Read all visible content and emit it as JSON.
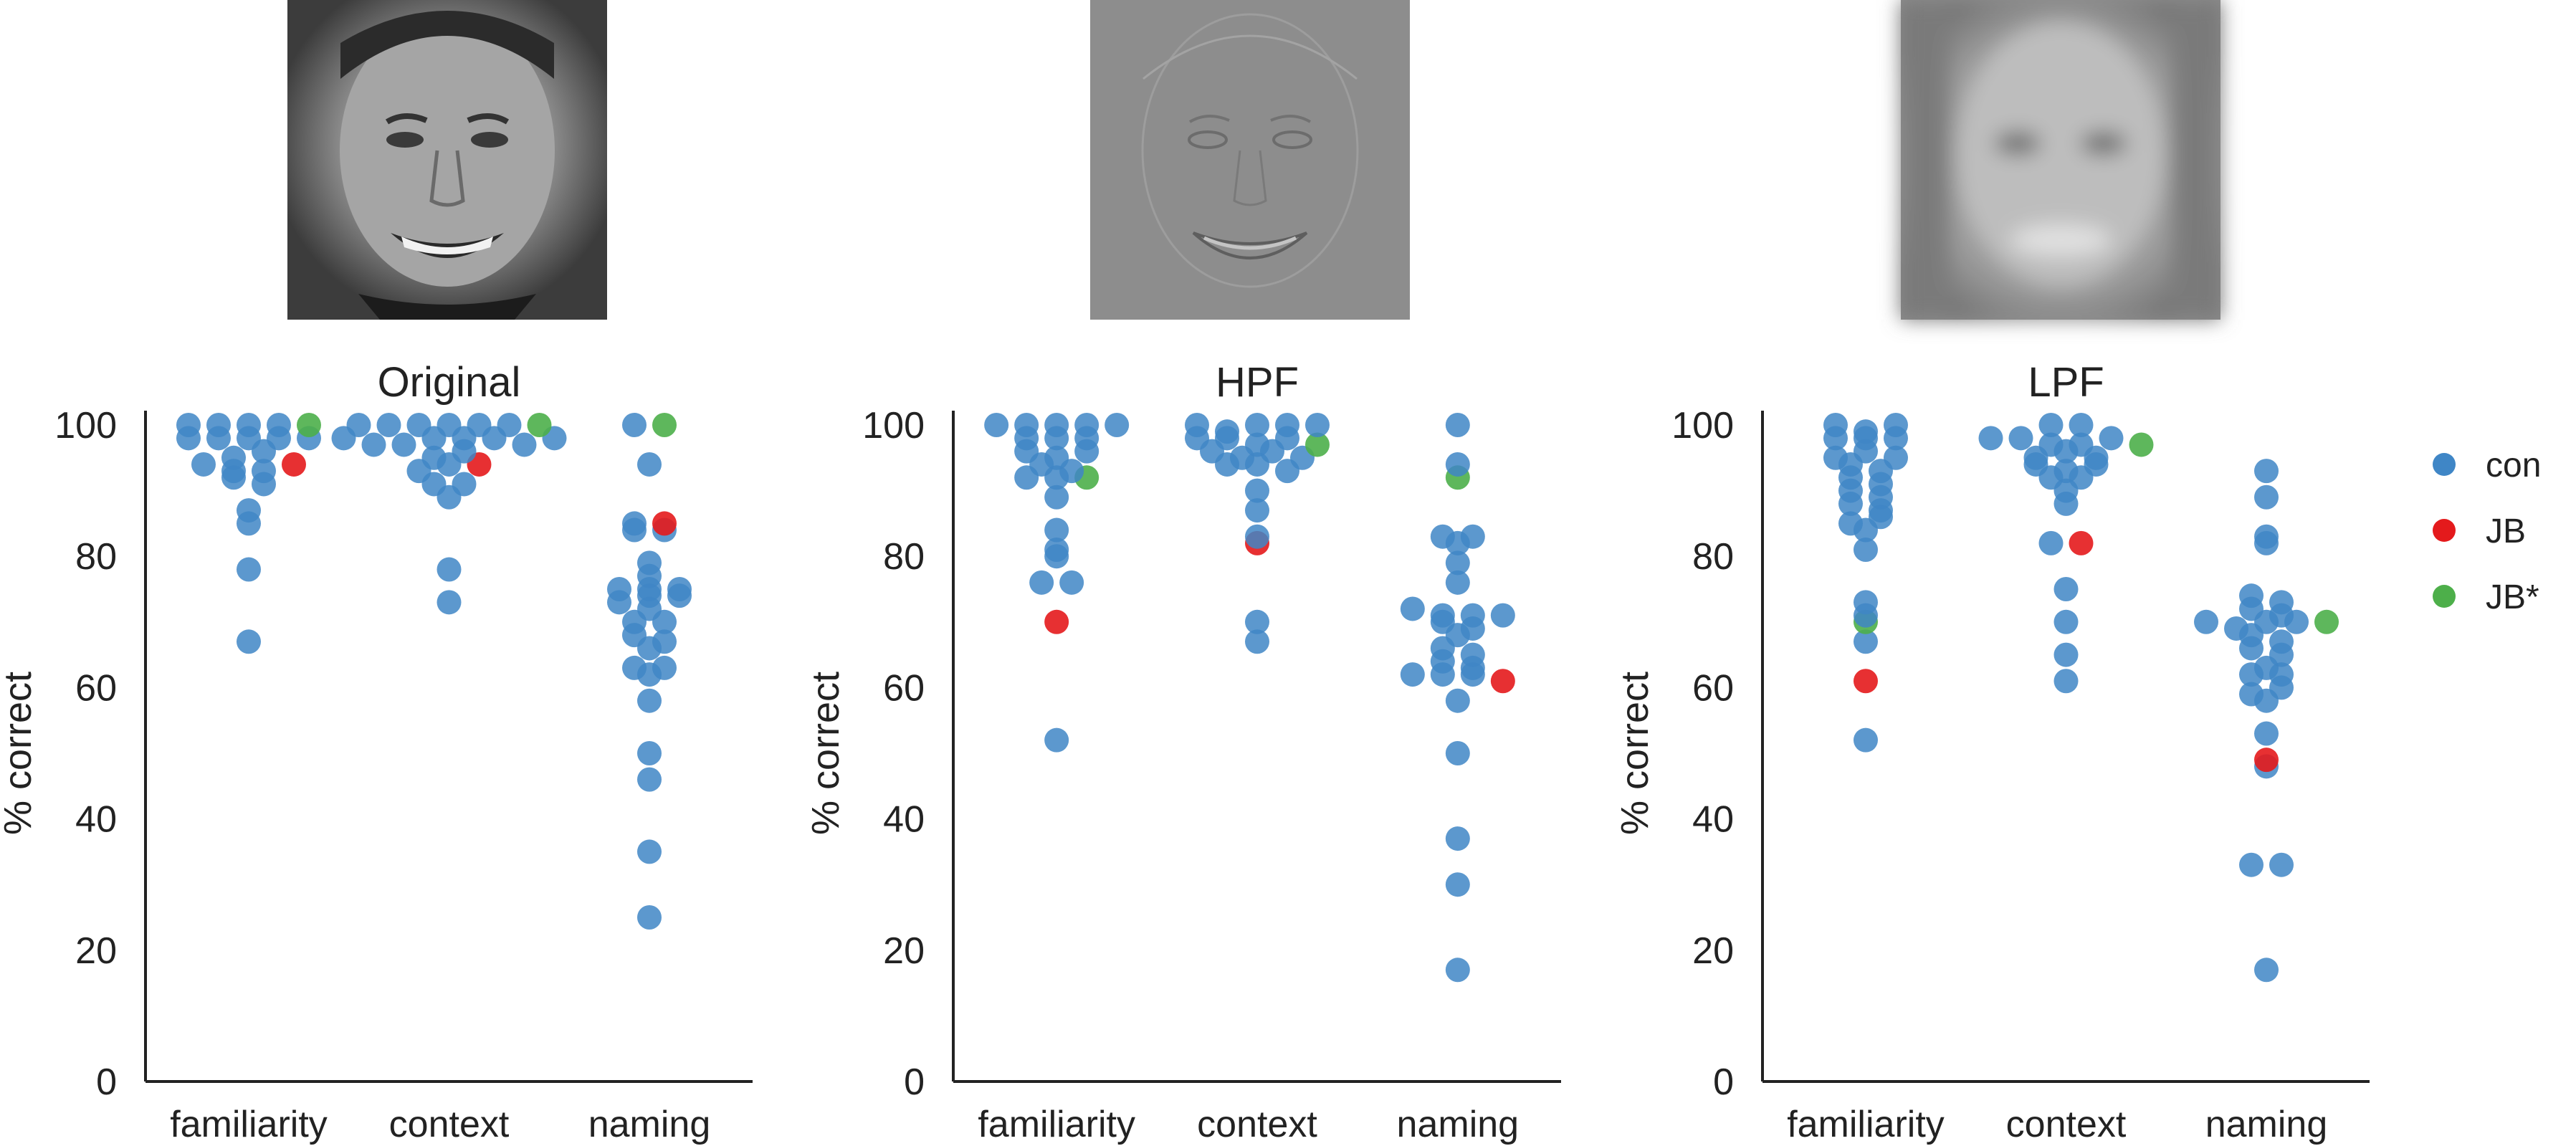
{
  "legend": {
    "position": "right",
    "items": [
      {
        "label": "con",
        "color": "#3f86c6"
      },
      {
        "label": "JB",
        "color": "#e41a1c"
      },
      {
        "label": "JB*",
        "color": "#4daf4a"
      }
    ]
  },
  "face_images": [
    {
      "name": "original-face-image",
      "style": "grayscale photo"
    },
    {
      "name": "hpf-face-image",
      "style": "high-pass filtered"
    },
    {
      "name": "lpf-face-image",
      "style": "low-pass filtered"
    }
  ],
  "chart_data": [
    {
      "type": "scatter",
      "title": "Original",
      "ylabel": "% correct",
      "xlabel": "",
      "categories": [
        "familiarity",
        "context",
        "naming"
      ],
      "ylim": [
        0,
        100
      ],
      "yticks": [
        0,
        20,
        40,
        60,
        80,
        100
      ],
      "grid": false,
      "points": {
        "con": [
          [
            100,
            98,
            98,
            95,
            94,
            92,
            98,
            91,
            87,
            85,
            78,
            67,
            100,
            96,
            93,
            98,
            93,
            98,
            100,
            100
          ],
          [
            98,
            97,
            100,
            97,
            100,
            95,
            98,
            91,
            93,
            89,
            100,
            96,
            100,
            94,
            98,
            91,
            100,
            98,
            78,
            73,
            100,
            97,
            98
          ],
          [
            100,
            94,
            85,
            84,
            84,
            79,
            77,
            75,
            73,
            72,
            70,
            70,
            68,
            67,
            66,
            63,
            63,
            62,
            58,
            50,
            46,
            35,
            25,
            75,
            74,
            74,
            75
          ]
        ],
        "JB": [
          94,
          94,
          85
        ],
        "JB*": [
          100,
          100,
          100
        ]
      }
    },
    {
      "type": "scatter",
      "title": "HPF",
      "ylabel": "% correct",
      "xlabel": "",
      "categories": [
        "familiarity",
        "context",
        "naming"
      ],
      "ylim": [
        0,
        100
      ],
      "yticks": [
        0,
        20,
        40,
        60,
        80,
        100
      ],
      "grid": false,
      "points": {
        "con": [
          [
            100,
            100,
            98,
            96,
            95,
            92,
            98,
            94,
            92,
            89,
            84,
            81,
            80,
            76,
            76,
            52,
            96,
            93,
            98,
            100,
            100,
            100
          ],
          [
            100,
            99,
            98,
            96,
            94,
            95,
            100,
            94,
            93,
            90,
            87,
            83,
            70,
            67,
            96,
            98,
            95,
            100,
            97,
            98,
            100
          ],
          [
            100,
            94,
            83,
            82,
            83,
            79,
            76,
            72,
            71,
            70,
            69,
            68,
            66,
            65,
            64,
            63,
            62,
            62,
            58,
            50,
            37,
            30,
            17,
            71,
            71,
            62
          ]
        ],
        "JB": [
          70,
          82,
          61
        ],
        "JB*": [
          92,
          97,
          92
        ]
      }
    },
    {
      "type": "scatter",
      "title": "LPF",
      "ylabel": "% correct",
      "xlabel": "",
      "categories": [
        "familiarity",
        "context",
        "naming"
      ],
      "ylim": [
        0,
        100
      ],
      "yticks": [
        0,
        20,
        40,
        60,
        80,
        100
      ],
      "grid": false,
      "points": {
        "con": [
          [
            100,
            98,
            95,
            98,
            94,
            92,
            96,
            93,
            90,
            89,
            88,
            85,
            86,
            84,
            81,
            95,
            98,
            91,
            87,
            99,
            100,
            73,
            71,
            67,
            52
          ],
          [
            98,
            94,
            98,
            95,
            92,
            97,
            90,
            100,
            96,
            93,
            88,
            82,
            75,
            70,
            65,
            61,
            92,
            97,
            100,
            98,
            94,
            95
          ],
          [
            93,
            89,
            83,
            82,
            74,
            73,
            72,
            71,
            70,
            69,
            68,
            67,
            66,
            65,
            63,
            62,
            62,
            59,
            58,
            53,
            48,
            33,
            33,
            17,
            70,
            70,
            60
          ]
        ],
        "JB": [
          61,
          82,
          49
        ],
        "JB*": [
          70,
          97,
          70
        ]
      }
    }
  ]
}
